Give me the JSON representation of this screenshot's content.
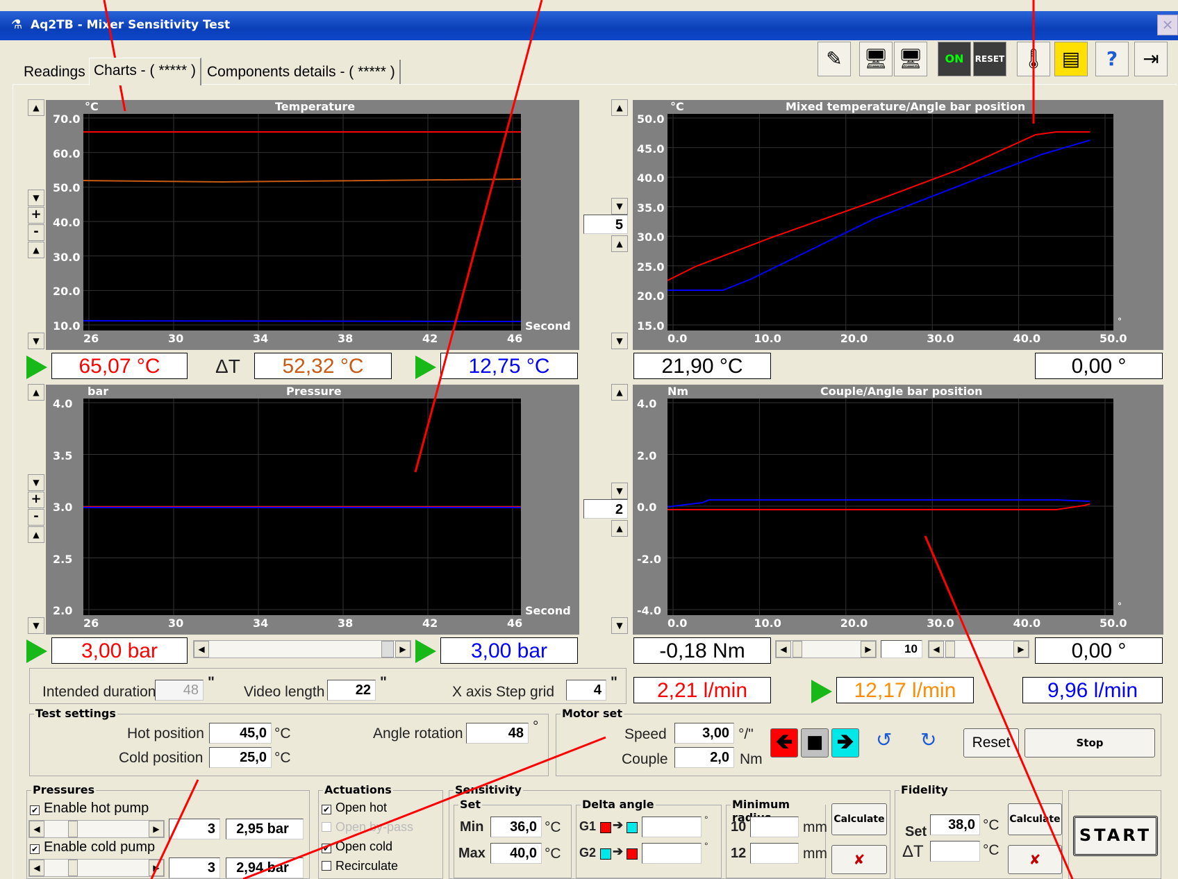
{
  "window": {
    "title": "Aq2TB - Mixer Sensitivity Test"
  },
  "tabs": [
    {
      "label": "Readings"
    },
    {
      "label": "Charts - ( ***** )"
    },
    {
      "label": "Components details - ( ***** )"
    }
  ],
  "toolbar": [
    "edit-icon",
    "computer-icon",
    "computer-icon",
    "on-icon",
    "reset-icon",
    "thermometer-icon",
    "report-icon",
    "help-icon",
    "exit-icon"
  ],
  "temp_chart": {
    "title": "Temperature",
    "unit": "°C",
    "xlabel": "Second",
    "y_ticks": [
      "70.0",
      "60.0",
      "50.0",
      "40.0",
      "30.0",
      "20.0",
      "10.0"
    ],
    "x_ticks": [
      "26",
      "30",
      "34",
      "38",
      "42",
      "46"
    ]
  },
  "mixed_chart": {
    "title": "Mixed temperature/Angle bar position",
    "unit": "°C",
    "y_ticks": [
      "50.0",
      "45.0",
      "40.0",
      "35.0",
      "30.0",
      "25.0",
      "20.0",
      "15.0"
    ],
    "x_ticks": [
      "0.0",
      "10.0",
      "20.0",
      "30.0",
      "40.0",
      "50.0"
    ],
    "x_unit": "°"
  },
  "pressure_chart": {
    "title": "Pressure",
    "unit": "bar",
    "xlabel": "Second",
    "y_ticks": [
      "4.0",
      "3.5",
      "3.0",
      "2.5",
      "2.0"
    ],
    "x_ticks": [
      "26",
      "30",
      "34",
      "38",
      "42",
      "46"
    ]
  },
  "couple_chart": {
    "title": "Couple/Angle bar position",
    "unit": "Nm",
    "y_ticks": [
      "4.0",
      "2.0",
      "0.0",
      "-2.0",
      "-4.0"
    ],
    "x_ticks": [
      "0.0",
      "10.0",
      "20.0",
      "30.0",
      "40.0",
      "50.0"
    ],
    "x_unit": "°"
  },
  "scales": {
    "top": "5",
    "bottom": "2",
    "step": "10"
  },
  "readouts": {
    "hot_temp": "65,07 °C",
    "delta_t_label": "ΔT",
    "delta_t": "52,32 °C",
    "cold_temp": "12,75 °C",
    "mixed_temp": "21,90 °C",
    "angle_top": "0,00 °",
    "hot_pressure": "3,00 bar",
    "cold_pressure": "3,00 bar",
    "couple": "-0,18 Nm",
    "angle_bottom": "0,00 °",
    "flow_total": "2,21 l/min",
    "flow_hot": "12,17 l/min",
    "flow_cold": "9,96 l/min"
  },
  "duration": {
    "intended_label": "Intended duration",
    "intended_value": "48",
    "video_label": "Video length",
    "video_value": "22",
    "xstep_label": "X axis Step grid",
    "xstep_value": "4",
    "unit": "\""
  },
  "test_settings": {
    "title": "Test settings",
    "hot_label": "Hot position",
    "hot_value": "45,0",
    "cold_label": "Cold position",
    "cold_value": "25,0",
    "unit": "°C",
    "angle_label": "Angle rotation",
    "angle_value": "48",
    "angle_unit": "°"
  },
  "motor": {
    "title": "Motor set",
    "speed_label": "Speed",
    "speed_value": "3,00",
    "speed_unit": "°/\"",
    "couple_label": "Couple",
    "couple_value": "2,0",
    "couple_unit": "Nm",
    "reset": "Reset",
    "stop": "Stop"
  },
  "pressures": {
    "title": "Pressures",
    "hot_label": "Enable hot pump",
    "hot_set": "3",
    "hot_value": "2,95 bar",
    "cold_label": "Enable cold pump",
    "cold_set": "3",
    "cold_value": "2,94 bar"
  },
  "actuations": {
    "title": "Actuations",
    "items": [
      {
        "label": "Open hot",
        "checked": "✔"
      },
      {
        "label": "Open by-pass",
        "checked": ""
      },
      {
        "label": "Open cold",
        "checked": "✔"
      },
      {
        "label": "Recirculate",
        "checked": ""
      }
    ]
  },
  "sensitivity": {
    "title": "Sensitivity",
    "set_title": "Set",
    "min_label": "Min",
    "min_value": "36,0",
    "max_label": "Max",
    "max_value": "40,0",
    "unit": "°C",
    "delta_title": "Delta angle",
    "g1": "G1",
    "g2": "G2",
    "deg": "°",
    "radius_title": "Minimum radius",
    "r1": "10",
    "r2": "12",
    "mm": "mm",
    "calculate": "Calculate"
  },
  "fidelity": {
    "title": "Fidelity",
    "set_label": "Set",
    "set_value": "38,0",
    "unit": "°C",
    "dt_label": "ΔT",
    "calculate": "Calculate"
  },
  "start": "START",
  "colors": {
    "hot": "#ff0000",
    "mixed": "#c85a14",
    "cold": "#0000ff",
    "flow_hot": "#ff8c00",
    "ann": "#ff0000"
  }
}
